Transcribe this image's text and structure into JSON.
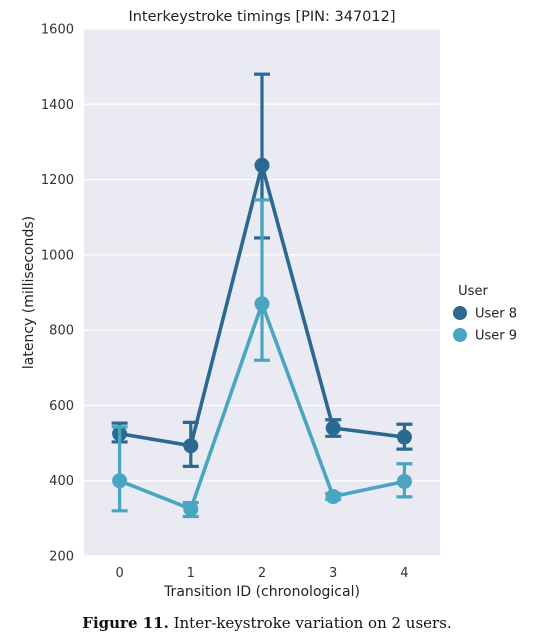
{
  "chart_data": {
    "type": "line",
    "title": "Interkeystroke timings [PIN: 347012]",
    "xlabel": "Transition ID (chronological)",
    "ylabel": "latency (milliseconds)",
    "categories": [
      "0",
      "1",
      "2",
      "3",
      "4"
    ],
    "ylim": [
      200,
      1600
    ],
    "yticks": [
      "200",
      "400",
      "600",
      "800",
      "1000",
      "1200",
      "1400",
      "1600"
    ],
    "grid": true,
    "legend": {
      "title": "User",
      "placement": "right"
    },
    "series": [
      {
        "name": "User 8",
        "color": "#2c6991",
        "values": [
          525,
          493,
          1238,
          540,
          516
        ],
        "err_low": [
          503,
          438,
          1045,
          518,
          484
        ],
        "err_high": [
          553,
          555,
          1480,
          562,
          550
        ]
      },
      {
        "name": "User 9",
        "color": "#4aa5c1",
        "values": [
          400,
          325,
          870,
          358,
          398
        ],
        "err_low": [
          320,
          305,
          720,
          350,
          357
        ],
        "err_high": [
          543,
          342,
          1146,
          366,
          445
        ]
      }
    ]
  },
  "caption": {
    "label": "Figure 11.",
    "text": "Inter-keystroke variation on 2 users."
  }
}
